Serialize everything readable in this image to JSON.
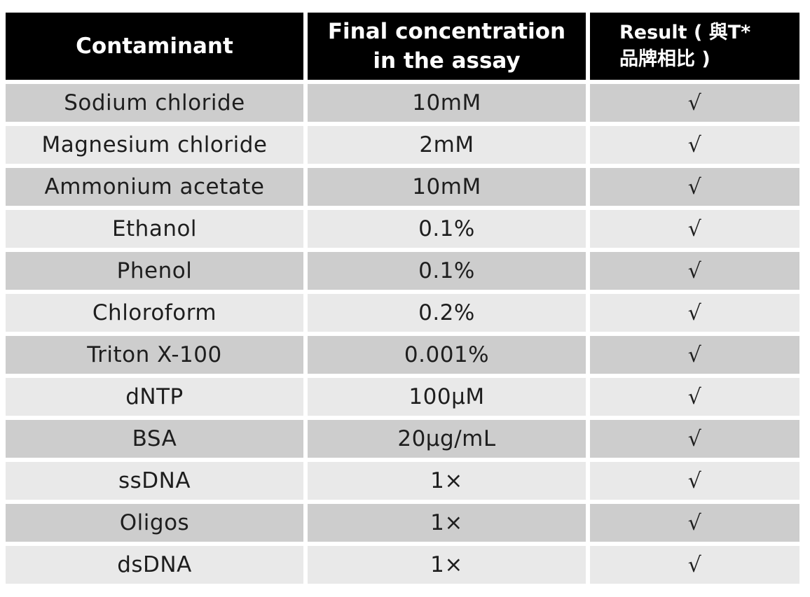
{
  "table": {
    "headers": [
      "Contaminant",
      "Final concentration in the assay",
      "Result ( 與T* 品牌相比 )"
    ],
    "header_lines": {
      "col2_line1": "Final concentration",
      "col2_line2": "in the assay",
      "col3_line1": "Result ( 與T*",
      "col3_line2": "品牌相比 )"
    },
    "rows": [
      {
        "contaminant": "Sodium chloride",
        "concentration": "10mM",
        "result": "√"
      },
      {
        "contaminant": "Magnesium chloride",
        "concentration": "2mM",
        "result": "√"
      },
      {
        "contaminant": "Ammonium acetate",
        "concentration": "10mM",
        "result": "√"
      },
      {
        "contaminant": "Ethanol",
        "concentration": "0.1%",
        "result": "√"
      },
      {
        "contaminant": "Phenol",
        "concentration": "0.1%",
        "result": "√"
      },
      {
        "contaminant": "Chloroform",
        "concentration": "0.2%",
        "result": "√"
      },
      {
        "contaminant": "Triton X-100",
        "concentration": "0.001%",
        "result": "√"
      },
      {
        "contaminant": "dNTP",
        "concentration": "100µM",
        "result": "√"
      },
      {
        "contaminant": "BSA",
        "concentration": "20µg/mL",
        "result": "√"
      },
      {
        "contaminant": "ssDNA",
        "concentration": "1×",
        "result": "√"
      },
      {
        "contaminant": "Oligos",
        "concentration": "1×",
        "result": "√"
      },
      {
        "contaminant": "dsDNA",
        "concentration": "1×",
        "result": "√"
      }
    ]
  },
  "colors": {
    "header_bg": "#000000",
    "header_text": "#ffffff",
    "row_dark": "#cdcdcd",
    "row_light": "#e9e9e9",
    "cell_text": "#1e1e1e"
  }
}
